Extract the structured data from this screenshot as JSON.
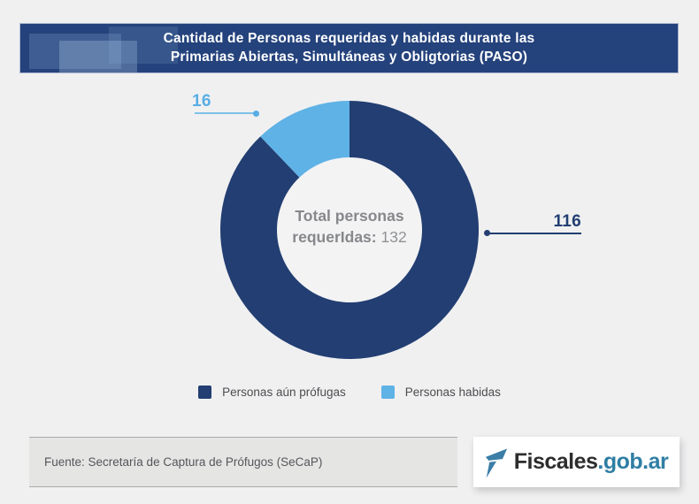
{
  "page": {
    "background_color": "#f0f0f1"
  },
  "header": {
    "title_line1": "Cantidad de Personas requeridas y habidas durante las",
    "title_line2": "Primarias Abiertas, Simultáneas y Obligtorias (PASO)",
    "background_color": "#24427c",
    "text_color": "#ffffff"
  },
  "chart_data": {
    "type": "pie",
    "subtype": "donut",
    "title": "Cantidad de Personas requeridas y habidas durante las Primarias Abiertas, Simultáneas y Obligtorias (PASO)",
    "categories": [
      "Personas aún prófugas",
      "Personas habidas"
    ],
    "values": [
      116,
      16
    ],
    "colors": [
      "#223e72",
      "#5fb2e5"
    ],
    "total": 132,
    "start_angle": "top",
    "direction": "clockwise",
    "hole_color": "#f3f3f4",
    "center_label": {
      "line1": "Total personas",
      "line2_bold": "requerIdas:",
      "value": "132"
    },
    "legend_position": "bottom"
  },
  "footer": {
    "source_text": "Fuente: Secretaría de Captura de Prófugos (SeCaP)",
    "logo_text": "Fiscales",
    "logo_suffix": ".gob.ar",
    "logo_accent_color": "#2f7ea4"
  }
}
